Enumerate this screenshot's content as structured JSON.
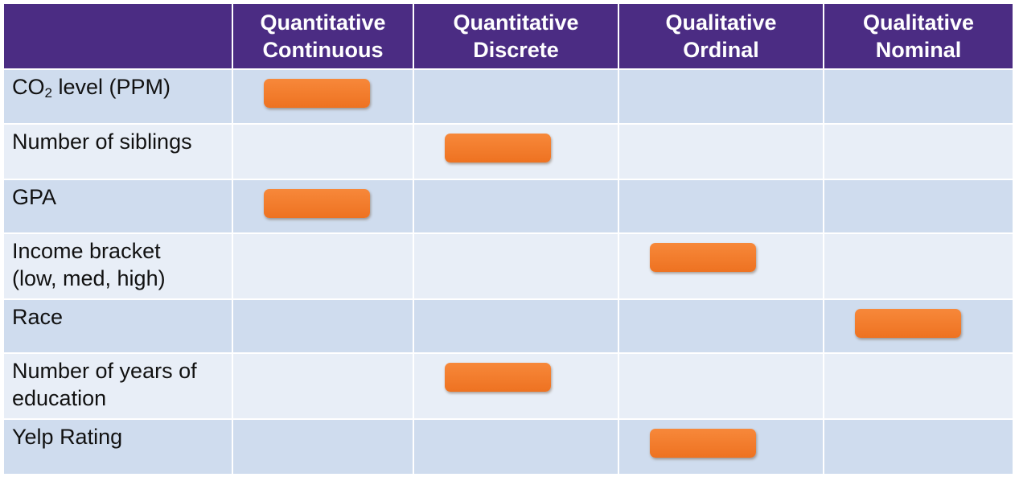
{
  "columns": [
    "",
    "Quantitative\nContinuous",
    "Quantitative\nDiscrete",
    "Qualitative\nOrdinal",
    "Qualitative\nNominal"
  ],
  "rows": [
    {
      "label_prefix": "CO",
      "label_sub": "2",
      "label_suffix": " level (PPM)",
      "selected": 1
    },
    {
      "label": "Number of siblings",
      "selected": 2
    },
    {
      "label": "GPA",
      "selected": 1
    },
    {
      "label": "Income bracket\n(low, med, high)",
      "selected": 3
    },
    {
      "label": "Race",
      "selected": 4
    },
    {
      "label": "Number of years of\neducation",
      "selected": 2
    },
    {
      "label": "Yelp Rating",
      "selected": 3
    }
  ],
  "colors": {
    "header_bg": "#4b2c83",
    "row_odd": "#cfdcee",
    "row_even": "#e8eef7",
    "marker": "#f07a2a"
  }
}
